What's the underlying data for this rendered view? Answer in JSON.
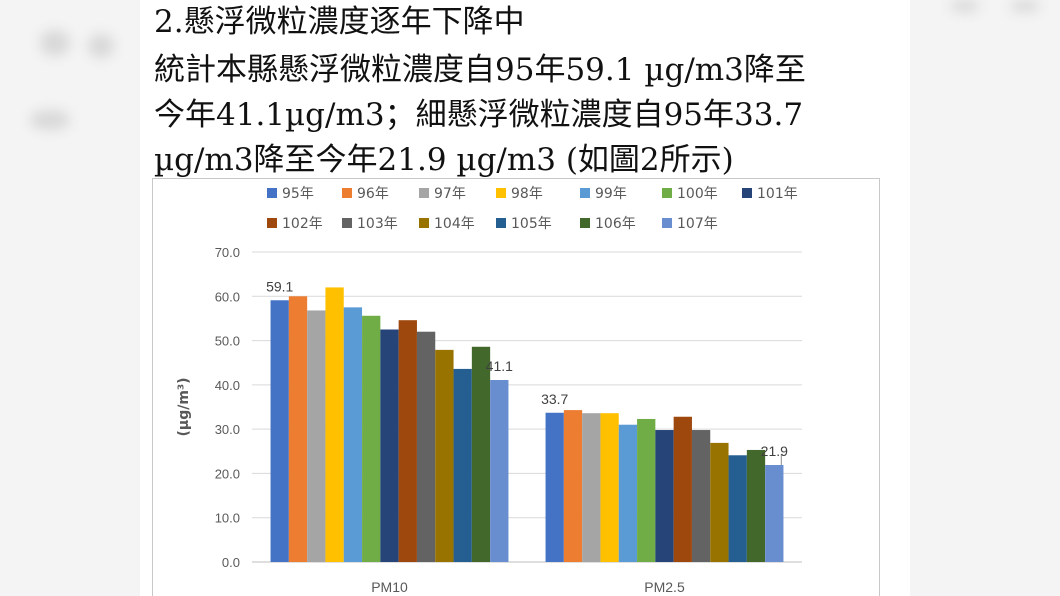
{
  "text": {
    "line1": "2.懸浮微粒濃度逐年下降中",
    "line2": "統計本縣懸浮微粒濃度自95年59.1 µg/m3降至",
    "line3": "今年41.1µg/m3；細懸浮微粒濃度自95年33.7",
    "line4": "µg/m3降至今年21.9 µg/m3 (如圖2所示)"
  },
  "chart_data": {
    "type": "bar",
    "categories": [
      "PM10",
      "PM2.5"
    ],
    "ylabel": "(µg/m³)",
    "ylim": [
      0,
      70
    ],
    "yticks": [
      "0.0",
      "10.0",
      "20.0",
      "30.0",
      "40.0",
      "50.0",
      "60.0",
      "70.0"
    ],
    "grid": true,
    "legend_position": "top",
    "series": [
      {
        "name": "95年",
        "color": "#4472c4",
        "values": [
          59.1,
          33.7
        ]
      },
      {
        "name": "96年",
        "color": "#ed7d31",
        "values": [
          60.0,
          34.3
        ]
      },
      {
        "name": "97年",
        "color": "#a5a5a5",
        "values": [
          56.8,
          33.6
        ]
      },
      {
        "name": "98年",
        "color": "#ffc000",
        "values": [
          62.0,
          33.6
        ]
      },
      {
        "name": "99年",
        "color": "#5b9bd5",
        "values": [
          57.5,
          31.0
        ]
      },
      {
        "name": "100年",
        "color": "#70ad47",
        "values": [
          55.6,
          32.3
        ]
      },
      {
        "name": "101年",
        "color": "#264478",
        "values": [
          52.5,
          29.8
        ]
      },
      {
        "name": "102年",
        "color": "#9e480e",
        "values": [
          54.6,
          32.8
        ]
      },
      {
        "name": "103年",
        "color": "#636363",
        "values": [
          52.0,
          29.8
        ]
      },
      {
        "name": "104年",
        "color": "#997300",
        "values": [
          47.9,
          26.9
        ]
      },
      {
        "name": "105年",
        "color": "#255e91",
        "values": [
          43.6,
          24.1
        ]
      },
      {
        "name": "106年",
        "color": "#43682b",
        "values": [
          48.6,
          25.3
        ]
      },
      {
        "name": "107年",
        "color": "#698ed0",
        "values": [
          41.1,
          21.9
        ]
      }
    ],
    "data_labels": [
      {
        "series": 0,
        "category": 0,
        "text": "59.1"
      },
      {
        "series": 12,
        "category": 0,
        "text": "41.1"
      },
      {
        "series": 0,
        "category": 1,
        "text": "33.7"
      },
      {
        "series": 12,
        "category": 1,
        "text": "21.9"
      }
    ]
  }
}
